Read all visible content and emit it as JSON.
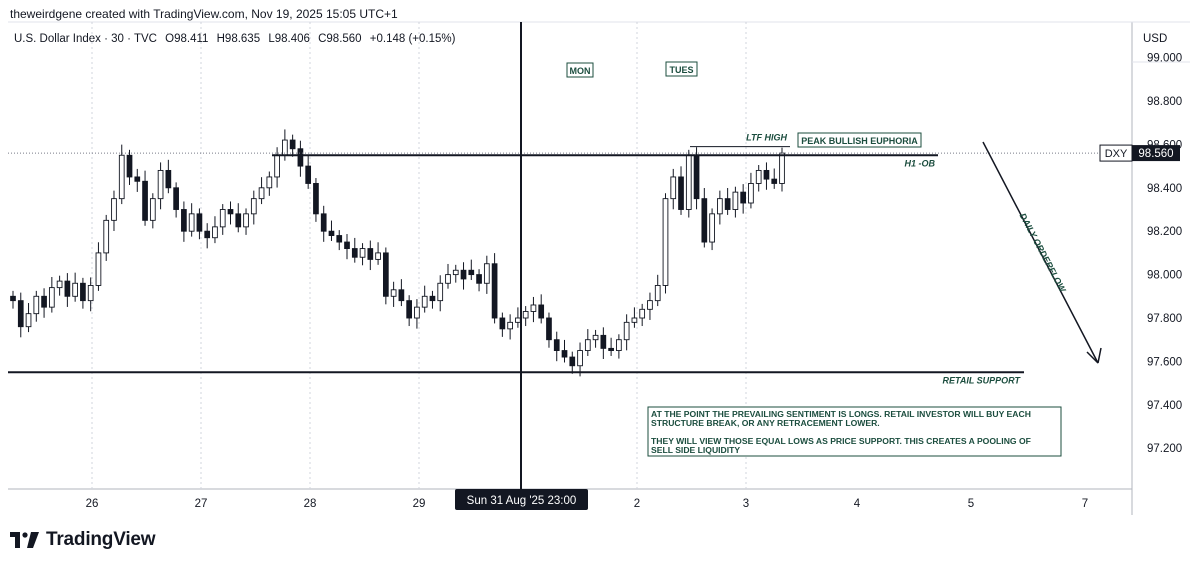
{
  "header": {
    "attribution": "theweirdgene created with TradingView.com, Nov 19, 2025 15:05 UTC+1"
  },
  "symbol": {
    "name": "U.S. Dollar Index · 30 · TVC",
    "open": "O98.411",
    "high": "H98.635",
    "low": "L98.406",
    "close": "C98.560",
    "change": "+0.148 (+0.15%)"
  },
  "currency": "USD",
  "price_tag": {
    "ticker": "DXY",
    "value": "98.560",
    "bg_color": "#131722"
  },
  "crosshair_label": "Sun 31 Aug '25   23:00",
  "brand": "TradingView",
  "colors": {
    "up": "#131722",
    "down": "#131722",
    "text": "#131722",
    "annotation": "#1b4d3e",
    "grid": "#d1d4dc"
  },
  "chart_data": {
    "type": "candlestick",
    "y_axis": {
      "ticks": [
        "99.000",
        "98.800",
        "98.600",
        "98.400",
        "98.200",
        "98.000",
        "97.800",
        "97.600",
        "97.400",
        "97.200"
      ],
      "ylim": [
        97.05,
        99.2
      ]
    },
    "x_axis": {
      "ticks": [
        "26",
        "27",
        "28",
        "29",
        "2",
        "3",
        "4",
        "5",
        "7"
      ]
    },
    "series": [
      {
        "values": [
          [
            97.9,
            97.88
          ],
          [
            97.88,
            97.76
          ],
          [
            97.76,
            97.82
          ],
          [
            97.82,
            97.9
          ],
          [
            97.9,
            97.85
          ],
          [
            97.85,
            97.94
          ],
          [
            97.94,
            97.97
          ],
          [
            97.97,
            97.9
          ],
          [
            97.9,
            97.96
          ],
          [
            97.96,
            97.88
          ],
          [
            97.88,
            97.95
          ],
          [
            97.95,
            98.1
          ],
          [
            98.1,
            98.25
          ],
          [
            98.25,
            98.35
          ],
          [
            98.35,
            98.55
          ],
          [
            98.55,
            98.45
          ],
          [
            98.45,
            98.43
          ],
          [
            98.43,
            98.25
          ],
          [
            98.25,
            98.35
          ],
          [
            98.35,
            98.48
          ],
          [
            98.48,
            98.4
          ],
          [
            98.4,
            98.3
          ],
          [
            98.3,
            98.2
          ],
          [
            98.2,
            98.28
          ],
          [
            98.28,
            98.2
          ],
          [
            98.2,
            98.17
          ],
          [
            98.17,
            98.22
          ],
          [
            98.22,
            98.3
          ],
          [
            98.3,
            98.28
          ],
          [
            98.28,
            98.22
          ],
          [
            98.22,
            98.28
          ],
          [
            98.28,
            98.35
          ],
          [
            98.35,
            98.4
          ],
          [
            98.4,
            98.45
          ],
          [
            98.45,
            98.55
          ],
          [
            98.55,
            98.62
          ],
          [
            98.62,
            98.58
          ],
          [
            98.58,
            98.5
          ],
          [
            98.5,
            98.42
          ],
          [
            98.42,
            98.28
          ],
          [
            98.28,
            98.2
          ],
          [
            98.2,
            98.18
          ],
          [
            98.18,
            98.15
          ],
          [
            98.15,
            98.12
          ],
          [
            98.12,
            98.08
          ],
          [
            98.08,
            98.12
          ],
          [
            98.12,
            98.07
          ],
          [
            98.07,
            98.1
          ],
          [
            98.1,
            97.9
          ],
          [
            97.9,
            97.93
          ],
          [
            97.93,
            97.88
          ],
          [
            97.88,
            97.8
          ],
          [
            97.8,
            97.85
          ],
          [
            97.85,
            97.9
          ],
          [
            97.9,
            97.88
          ],
          [
            97.88,
            97.96
          ],
          [
            97.96,
            98.0
          ],
          [
            98.0,
            98.02
          ],
          [
            98.02,
            97.98
          ],
          [
            98.02,
            98.0
          ],
          [
            98.0,
            97.96
          ],
          [
            97.96,
            98.05
          ],
          [
            98.05,
            97.8
          ],
          [
            97.8,
            97.75
          ],
          [
            97.75,
            97.78
          ],
          [
            97.78,
            97.8
          ],
          [
            97.8,
            97.83
          ],
          [
            97.83,
            97.86
          ],
          [
            97.86,
            97.8
          ],
          [
            97.8,
            97.7
          ],
          [
            97.7,
            97.65
          ],
          [
            97.65,
            97.62
          ],
          [
            97.62,
            97.58
          ],
          [
            97.58,
            97.65
          ],
          [
            97.65,
            97.7
          ],
          [
            97.7,
            97.72
          ],
          [
            97.72,
            97.66
          ],
          [
            97.66,
            97.65
          ],
          [
            97.65,
            97.7
          ],
          [
            97.7,
            97.78
          ],
          [
            97.78,
            97.8
          ],
          [
            97.8,
            97.84
          ],
          [
            97.84,
            97.88
          ],
          [
            97.88,
            97.95
          ],
          [
            97.95,
            98.35
          ],
          [
            98.35,
            98.45
          ],
          [
            98.45,
            98.3
          ],
          [
            98.3,
            98.55
          ],
          [
            98.55,
            98.35
          ],
          [
            98.35,
            98.15
          ],
          [
            98.15,
            98.28
          ],
          [
            98.28,
            98.35
          ],
          [
            98.35,
            98.3
          ],
          [
            98.3,
            98.38
          ],
          [
            98.38,
            98.33
          ],
          [
            98.33,
            98.42
          ],
          [
            98.42,
            98.48
          ],
          [
            98.48,
            98.44
          ],
          [
            98.44,
            98.42
          ],
          [
            98.42,
            98.56
          ]
        ]
      }
    ],
    "levels": [
      {
        "label": "H1 -OB",
        "y": 98.55
      },
      {
        "label": "RETAIL SUPPORT",
        "y": 97.55
      },
      {
        "label": "LTF HIGH",
        "y": 98.59
      }
    ],
    "annotations": {
      "mon": "MON",
      "tues": "TUES",
      "peak": "PEAK BULLISH EUPHORIA",
      "orderflow": "DAILY ORDERFLOW",
      "note_line1": "AT THE POINT THE PREVAILING SENTIMENT IS LONGS. RETAIL INVESTOR WILL BUY EACH",
      "note_line2": "STRUCTURE BREAK,  OR ANY RETRACEMENT LOWER.",
      "note_line3": "THEY WILL VIEW THOSE EQUAL LOWS AS PRICE SUPPORT. THIS CREATES A POOLING OF",
      "note_line4": "SELL SIDE LIQUIDITY"
    }
  }
}
